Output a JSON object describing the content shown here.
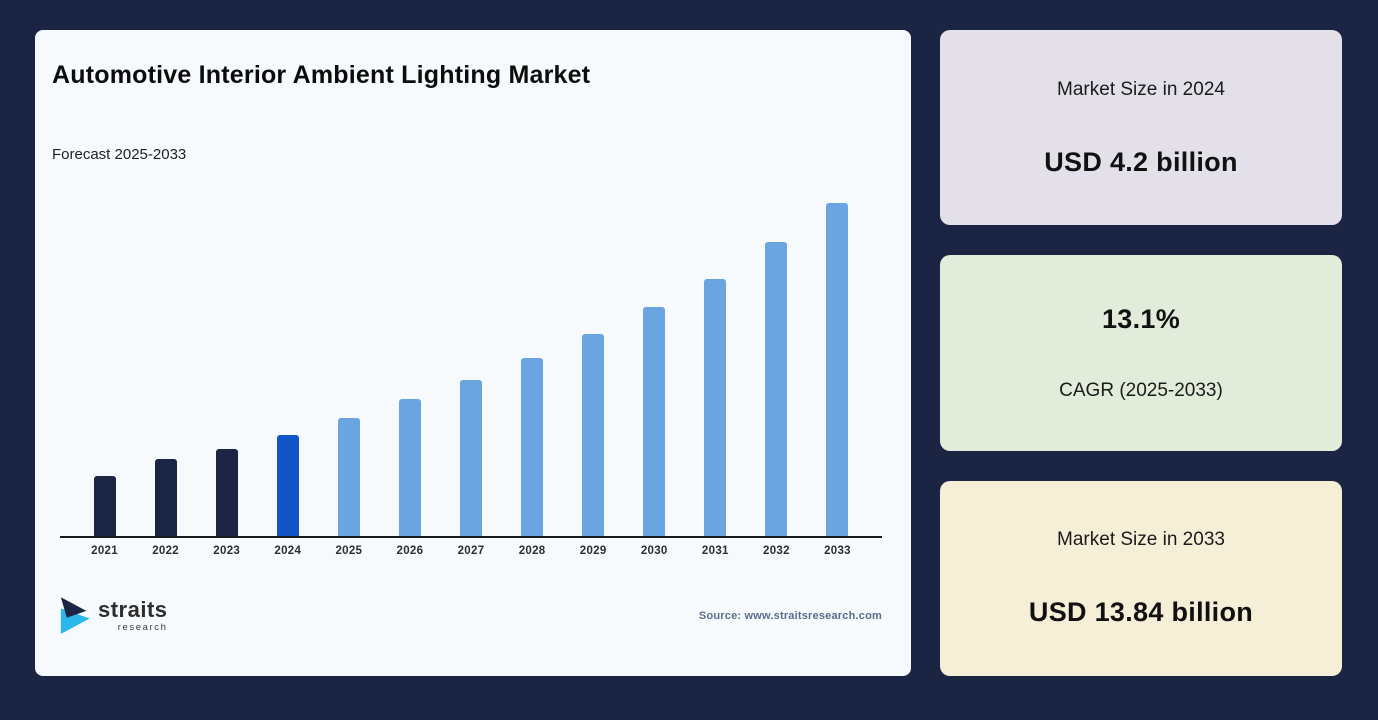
{
  "page": {
    "background": "#1b2543"
  },
  "chart_card": {
    "bg": "#f7fafd",
    "title": "Automotive Interior Ambient Lighting Market",
    "subtitle": "Forecast 2025-2033",
    "source": "Source: www.straitsresearch.com",
    "logo": {
      "name": "straits",
      "sub": "research",
      "icon_dark": "#1c2644",
      "icon_cyan": "#2ab7e9"
    }
  },
  "chart_data": {
    "type": "bar",
    "title": "Automotive Interior Ambient Lighting Market",
    "subtitle": "Forecast 2025-2033",
    "unit": "USD billion",
    "categories": [
      "2021",
      "2022",
      "2023",
      "2024",
      "2025",
      "2026",
      "2027",
      "2028",
      "2029",
      "2030",
      "2031",
      "2032",
      "2033"
    ],
    "values": [
      2.5,
      3.2,
      3.6,
      4.2,
      4.9,
      5.7,
      6.5,
      7.4,
      8.4,
      9.5,
      10.7,
      12.2,
      13.84
    ],
    "ylim": [
      0,
      14
    ],
    "grid": false,
    "legend": "none",
    "y_axis_labels": "none",
    "bar_colors": [
      "#1c2644",
      "#1c2644",
      "#1c2644",
      "#1156c6",
      "#6aa5e2",
      "#6aa5e2",
      "#6aa5e2",
      "#6aa5e2",
      "#6aa5e2",
      "#6aa5e2",
      "#6aa5e2",
      "#6aa5e2",
      "#6aa5e2"
    ],
    "color_key": {
      "historical_2021_2023": "#1c2644",
      "base_year_2024": "#1156c6",
      "forecast_2025_2033": "#6aa5e2"
    },
    "axis_color": "#141820"
  },
  "side_cards": [
    {
      "bg": "#e4e0ea",
      "label": "Market Size in 2024",
      "value": "USD 4.2 billion"
    },
    {
      "bg": "#e2ecdb",
      "value": "13.1%",
      "label": "CAGR (2025-2033)"
    },
    {
      "bg": "#f6efd8",
      "label": "Market Size in 2033",
      "value": "USD 13.84 billion"
    }
  ]
}
